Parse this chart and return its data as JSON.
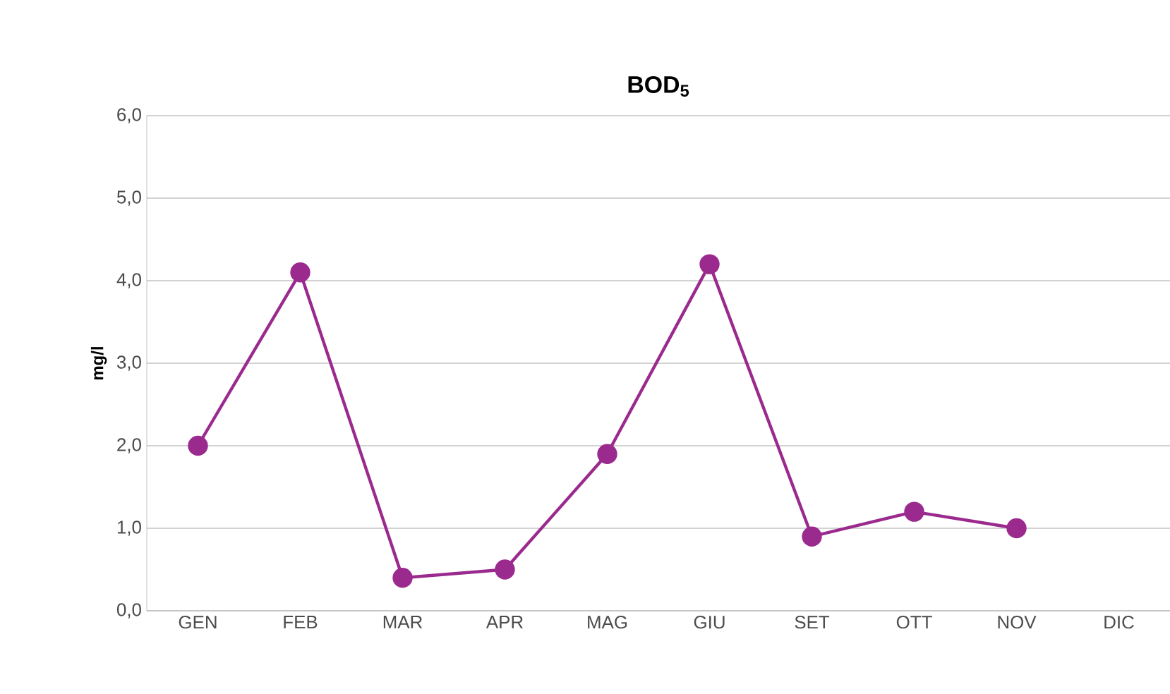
{
  "chart_data": {
    "type": "line",
    "title": "BOD$_{5}$",
    "ylabel": "mg/l",
    "categories": [
      "GEN",
      "FEB",
      "MAR",
      "APR",
      "MAG",
      "GIU",
      "SET",
      "OTT",
      "NOV",
      "DIC"
    ],
    "series": [
      {
        "color": "#9b2a8e",
        "values": [
          2.0,
          4.1,
          0.4,
          0.5,
          1.9,
          4.2,
          0.9,
          1.2,
          1.0,
          null
        ]
      }
    ],
    "ylim": [
      0,
      6
    ],
    "yticks": [
      {
        "value": 0,
        "label": "0,0"
      },
      {
        "value": 1,
        "label": "1,0"
      },
      {
        "value": 2,
        "label": "2,0"
      },
      {
        "value": 3,
        "label": "3,0"
      },
      {
        "value": 4,
        "label": "4,0"
      },
      {
        "value": 5,
        "label": "5,0"
      },
      {
        "value": 6,
        "label": "6,0"
      }
    ],
    "grid": "y",
    "marker": "circle",
    "line_style": "solid"
  }
}
